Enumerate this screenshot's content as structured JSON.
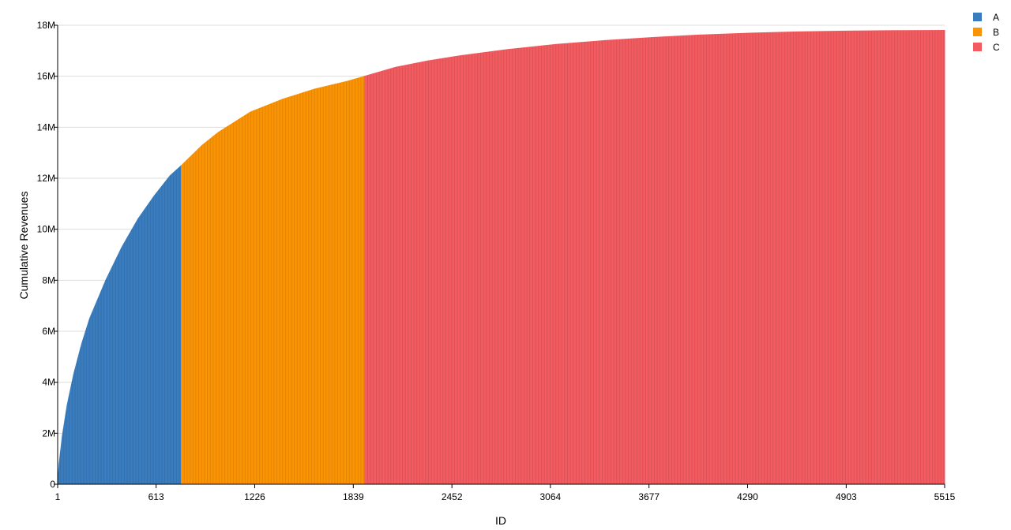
{
  "chart_data": {
    "type": "area",
    "title": "",
    "xlabel": "ID",
    "ylabel": "Cumulative Revenues",
    "xlim": [
      1,
      5515
    ],
    "ylim": [
      0,
      18000000
    ],
    "x_ticks": [
      {
        "value": 1,
        "label": "1"
      },
      {
        "value": 613,
        "label": "613"
      },
      {
        "value": 1226,
        "label": "1226"
      },
      {
        "value": 1839,
        "label": "1839"
      },
      {
        "value": 2452,
        "label": "2452"
      },
      {
        "value": 3064,
        "label": "3064"
      },
      {
        "value": 3677,
        "label": "3677"
      },
      {
        "value": 4290,
        "label": "4290"
      },
      {
        "value": 4903,
        "label": "4903"
      },
      {
        "value": 5515,
        "label": "5515"
      }
    ],
    "y_ticks": [
      {
        "value": 0,
        "label": "0"
      },
      {
        "value": 2000000,
        "label": "2M"
      },
      {
        "value": 4000000,
        "label": "4M"
      },
      {
        "value": 6000000,
        "label": "6M"
      },
      {
        "value": 8000000,
        "label": "8M"
      },
      {
        "value": 10000000,
        "label": "10M"
      },
      {
        "value": 12000000,
        "label": "12M"
      },
      {
        "value": 14000000,
        "label": "14M"
      },
      {
        "value": 16000000,
        "label": "16M"
      },
      {
        "value": 18000000,
        "label": "18M"
      }
    ],
    "grid": true,
    "legend_position": "top-right",
    "series": [
      {
        "name": "A",
        "color": "#3a7dbf",
        "x": [
          1,
          10,
          30,
          60,
          100,
          150,
          200,
          300,
          400,
          500,
          600,
          700,
          770
        ],
        "y": [
          0,
          800000,
          1900000,
          3100000,
          4300000,
          5500000,
          6500000,
          8000000,
          9300000,
          10400000,
          11300000,
          12100000,
          12500000
        ]
      },
      {
        "name": "B",
        "color": "#fb9404",
        "x": [
          770,
          900,
          1000,
          1200,
          1400,
          1600,
          1800,
          1910
        ],
        "y": [
          12500000,
          13300000,
          13800000,
          14600000,
          15100000,
          15500000,
          15800000,
          16000000
        ]
      },
      {
        "name": "C",
        "color": "#f25c60",
        "x": [
          1910,
          2100,
          2300,
          2500,
          2800,
          3100,
          3400,
          3700,
          4000,
          4300,
          4600,
          4900,
          5200,
          5515
        ],
        "y": [
          16000000,
          16350000,
          16600000,
          16800000,
          17050000,
          17250000,
          17400000,
          17520000,
          17620000,
          17690000,
          17740000,
          17770000,
          17790000,
          17800000
        ]
      }
    ]
  }
}
